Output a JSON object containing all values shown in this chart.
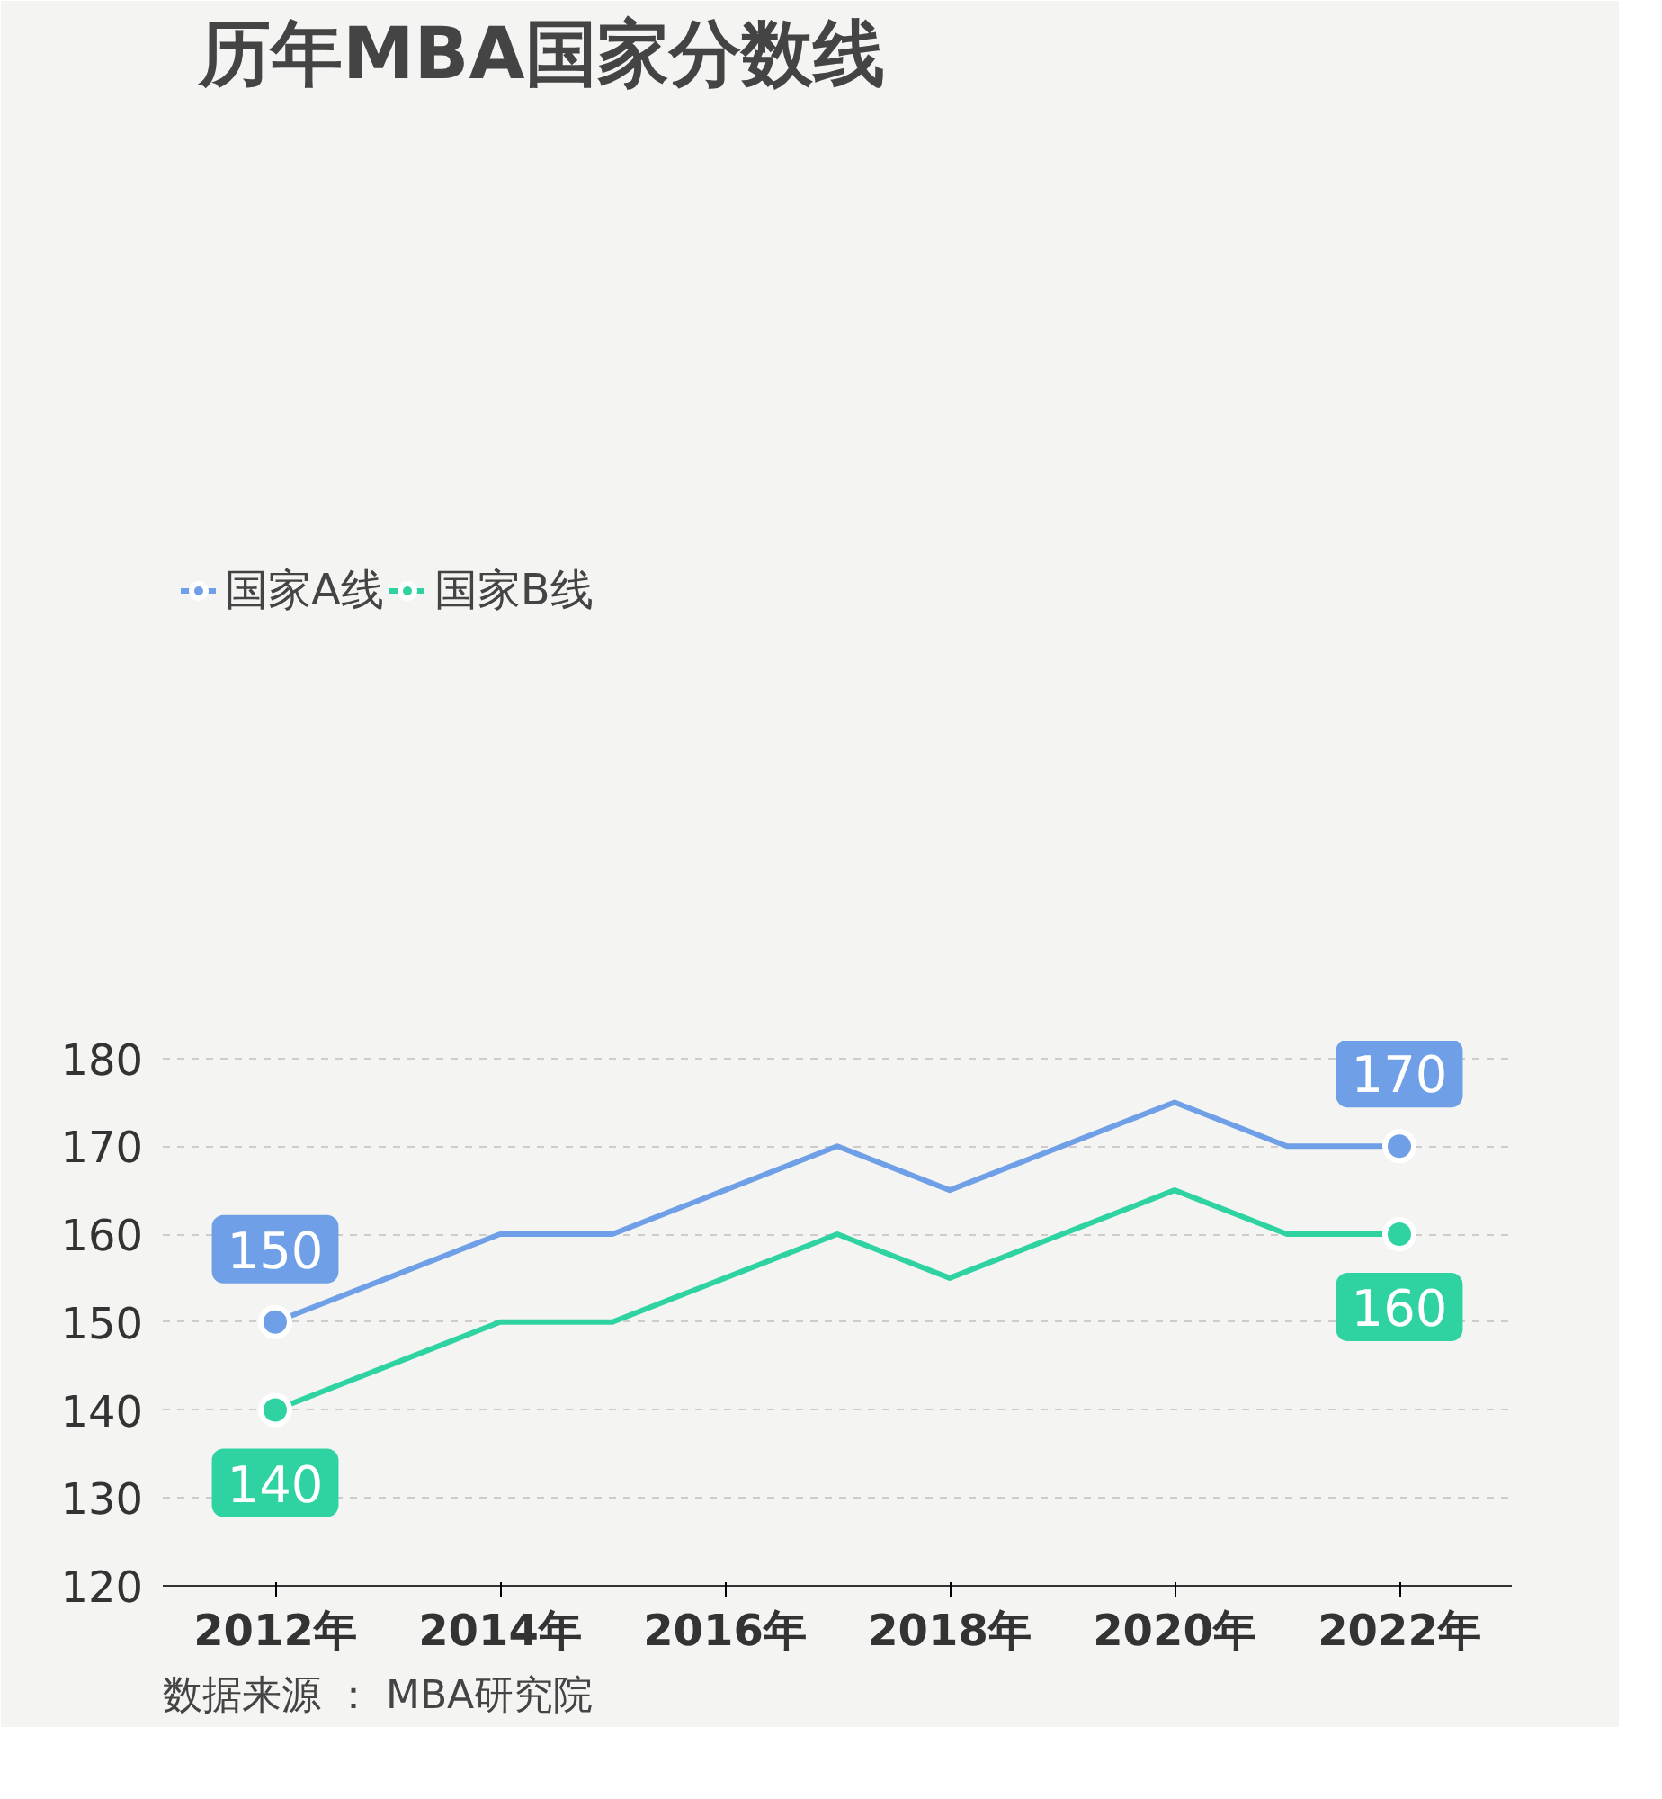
{
  "chart_data": {
    "type": "line",
    "title": "历年MBA国家分数线",
    "x": [
      2012,
      2013,
      2014,
      2015,
      2016,
      2017,
      2018,
      2019,
      2020,
      2021,
      2022
    ],
    "series": [
      {
        "name": "国家A线",
        "color": "#6f9fe6",
        "values": [
          150,
          155,
          160,
          160,
          165,
          170,
          165,
          170,
          175,
          170,
          170
        ],
        "value_labels": [
          "150",
          null,
          null,
          null,
          null,
          null,
          null,
          null,
          null,
          null,
          "170"
        ]
      },
      {
        "name": "国家B线",
        "color": "#2fd3a2",
        "values": [
          140,
          145,
          150,
          150,
          155,
          160,
          155,
          160,
          165,
          160,
          160
        ],
        "value_labels": [
          "140",
          null,
          null,
          null,
          null,
          null,
          null,
          null,
          null,
          null,
          "160"
        ]
      }
    ],
    "xlim": [
      2011,
      2023
    ],
    "xticks": [
      {
        "value": 2012,
        "label": "2012年"
      },
      {
        "value": 2014,
        "label": "2014年"
      },
      {
        "value": 2016,
        "label": "2016年"
      },
      {
        "value": 2018,
        "label": "2018年"
      },
      {
        "value": 2020,
        "label": "2020年"
      },
      {
        "value": 2022,
        "label": "2022年"
      }
    ],
    "ylim": [
      120,
      182
    ],
    "yticks": [
      120,
      130,
      140,
      150,
      160,
      170,
      180
    ],
    "grid": "y",
    "legend": "top left",
    "line_style": "solid",
    "annotations": [
      "数据来源 ： MBA研究院"
    ]
  }
}
